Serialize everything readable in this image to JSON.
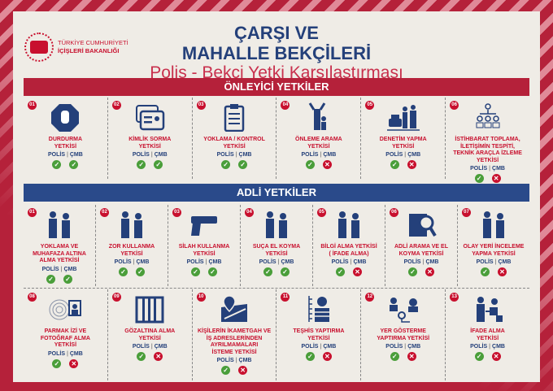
{
  "header": {
    "org_line1": "TÜRKİYE CUMHURİYETİ",
    "org_line2": "İÇİŞLERİ BAKANLIĞI",
    "title_line1": "ÇARŞI VE",
    "title_line2": "MAHALLE BEKÇİLERİ",
    "subtitle": "Polis - Bekçi Yetki Karşılaştırması"
  },
  "colors": {
    "red": "#b5213a",
    "navy": "#24407a",
    "green": "#4a9e3a",
    "cross": "#c8102e"
  },
  "legend": {
    "polis": "POLİS",
    "separator": "|",
    "cmb": "ÇMB"
  },
  "sections": [
    {
      "title": "ÖNLEYİCİ YETKİLER",
      "rows": [
        [
          {
            "num": "01",
            "icon": "stop-hand",
            "title": "DURDURMA\nYETKİSİ",
            "polis": true,
            "cmb": true
          },
          {
            "num": "02",
            "icon": "id-card",
            "title": "KİMLİK SORMA\nYETKİSİ",
            "polis": true,
            "cmb": true
          },
          {
            "num": "03",
            "icon": "clipboard",
            "title": "YOKLAMA / KONTROL\nYETKİSİ",
            "polis": true,
            "cmb": true
          },
          {
            "num": "04",
            "icon": "body-search",
            "title": "ÖNLEME ARAMA\nYETKİSİ",
            "polis": true,
            "cmb": false
          },
          {
            "num": "05",
            "icon": "car-inspection",
            "title": "DENETİM YAPMA\nYETKİSİ",
            "polis": true,
            "cmb": false
          },
          {
            "num": "06",
            "icon": "network",
            "title": "İSTİHBARAT TOPLAMA,\nİLETİŞİMİN TESPİTİ,\nTEKNİK ARAÇLA İZLEME\nYETKİSİ",
            "polis": true,
            "cmb": false
          }
        ]
      ]
    },
    {
      "title": "ADLİ YETKİLER",
      "rows": [
        [
          {
            "num": "01",
            "icon": "detain",
            "title": "YOKLAMA VE\nMUHAFAZA ALTINA\nALMA YETKİSİ",
            "polis": true,
            "cmb": true
          },
          {
            "num": "02",
            "icon": "force",
            "title": "ZOR KULLANMA\nYETKİSİ",
            "polis": true,
            "cmb": true
          },
          {
            "num": "03",
            "icon": "gun",
            "title": "SİLAH KULLANMA\nYETKİSİ",
            "polis": true,
            "cmb": true
          },
          {
            "num": "04",
            "icon": "seize-car",
            "title": "SUÇA EL KOYMA\nYETKİSİ",
            "polis": true,
            "cmb": true
          },
          {
            "num": "05",
            "icon": "interrogation",
            "title": "BİLGİ ALMA YETKİSİ\n( İFADE ALMA)",
            "polis": true,
            "cmb": false
          },
          {
            "num": "06",
            "icon": "document-search",
            "title": "ADLİ ARAMA VE EL\nKOYMA YETKİSİ",
            "polis": true,
            "cmb": false
          },
          {
            "num": "07",
            "icon": "crime-scene",
            "title": "OLAY YERİ İNCELEME\nYAPMA YETKİSİ",
            "polis": true,
            "cmb": false
          }
        ],
        [
          {
            "num": "08",
            "icon": "fingerprint",
            "title": "PARMAK İZİ VE\nFOTOĞRAF ALMA\nYETKİSİ",
            "polis": true,
            "cmb": false
          },
          {
            "num": "09",
            "icon": "jail",
            "title": "GÖZALTINA ALMA\nYETKİSİ",
            "polis": true,
            "cmb": false
          },
          {
            "num": "10",
            "icon": "map-pin",
            "title": "KİŞİLERİN İKAMETGAH VE\nİŞ ADRESLERİNDEN\nAYRILMAMALARI\nİSTEME YETKİSİ",
            "polis": true,
            "cmb": false
          },
          {
            "num": "11",
            "icon": "lineup",
            "title": "TEŞHİS YAPTIRMA\nYETKİSİ",
            "polis": true,
            "cmb": false
          },
          {
            "num": "12",
            "icon": "route",
            "title": "YER GÖSTERME\nYAPTIRMA YETKİSİ",
            "polis": true,
            "cmb": false
          },
          {
            "num": "13",
            "icon": "statement",
            "title": "İFADE ALMA\nYETKİSİ",
            "polis": true,
            "cmb": false
          }
        ]
      ]
    }
  ]
}
